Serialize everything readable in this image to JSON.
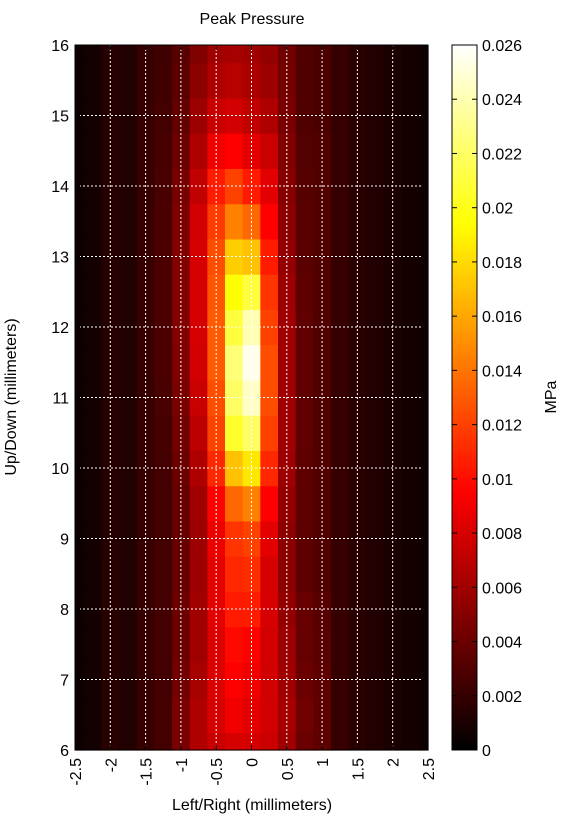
{
  "chart_data": {
    "type": "heatmap",
    "title": "Peak Pressure",
    "xlabel": "Left/Right (millimeters)",
    "ylabel": "Up/Down (millimeters)",
    "xlim": [
      -2.5,
      2.5
    ],
    "ylim": [
      6,
      16
    ],
    "x_ticks": [
      -2.5,
      -2,
      -1.5,
      -1,
      -0.5,
      0,
      0.5,
      1,
      1.5,
      2,
      2.5
    ],
    "x_tick_labels": [
      "-2.5",
      "-2",
      "-1.5",
      "-1",
      "-0.5",
      "0",
      "0.5",
      "1",
      "1.5",
      "2",
      "2.5"
    ],
    "y_ticks": [
      6,
      7,
      8,
      9,
      10,
      11,
      12,
      13,
      14,
      15,
      16
    ],
    "y_tick_labels": [
      "6",
      "7",
      "8",
      "9",
      "10",
      "11",
      "12",
      "13",
      "14",
      "15",
      "16"
    ],
    "grid": true,
    "colormap": "hot",
    "colorbar": {
      "label": "MPa",
      "range": [
        0,
        0.026
      ],
      "ticks": [
        0,
        0.002,
        0.004,
        0.006,
        0.008,
        0.01,
        0.012,
        0.014,
        0.016,
        0.018,
        0.02,
        0.022,
        0.024,
        0.026
      ],
      "tick_labels": [
        "0",
        "0.002",
        "0.004",
        "0.006",
        "0.008",
        "0.01",
        "0.012",
        "0.014",
        "0.016",
        "0.018",
        "0.02",
        "0.022",
        "0.024",
        "0.026"
      ]
    },
    "x": [
      -2.5,
      -2.25,
      -2,
      -1.75,
      -1.5,
      -1.25,
      -1,
      -0.75,
      -0.5,
      -0.25,
      0,
      0.25,
      0.5,
      0.75,
      1,
      1.25,
      1.5,
      1.75,
      2,
      2.25,
      2.5
    ],
    "y": [
      6,
      6.5,
      7,
      7.5,
      8,
      8.5,
      9,
      9.5,
      10,
      10.5,
      11,
      11.5,
      12,
      12.5,
      13,
      13.5,
      14,
      14.5,
      15,
      15.5,
      16
    ],
    "z": [
      [
        0.0005,
        0.0007,
        0.0015,
        0.0012,
        0.002,
        0.0025,
        0.0045,
        0.0065,
        0.0075,
        0.008,
        0.008,
        0.0075,
        0.006,
        0.004,
        0.0035,
        0.002,
        0.0015,
        0.0012,
        0.001,
        0.0008,
        0.0005
      ],
      [
        0.0005,
        0.0007,
        0.0015,
        0.0012,
        0.002,
        0.0025,
        0.0045,
        0.0065,
        0.008,
        0.009,
        0.0085,
        0.0078,
        0.0062,
        0.0042,
        0.0035,
        0.002,
        0.0015,
        0.0012,
        0.001,
        0.0008,
        0.0005
      ],
      [
        0.0005,
        0.0007,
        0.0015,
        0.0012,
        0.002,
        0.0025,
        0.0042,
        0.0062,
        0.0082,
        0.0095,
        0.009,
        0.0078,
        0.006,
        0.004,
        0.0035,
        0.002,
        0.0015,
        0.0012,
        0.001,
        0.0008,
        0.0005
      ],
      [
        0.0005,
        0.0007,
        0.0015,
        0.0012,
        0.002,
        0.0025,
        0.004,
        0.006,
        0.0082,
        0.0098,
        0.0095,
        0.0078,
        0.0058,
        0.0038,
        0.0033,
        0.002,
        0.0015,
        0.0012,
        0.001,
        0.0008,
        0.0005
      ],
      [
        0.0005,
        0.0007,
        0.0015,
        0.0012,
        0.002,
        0.0025,
        0.004,
        0.006,
        0.0085,
        0.0105,
        0.0105,
        0.008,
        0.0055,
        0.0038,
        0.0032,
        0.002,
        0.0015,
        0.0012,
        0.001,
        0.0008,
        0.0005
      ],
      [
        0.0005,
        0.0007,
        0.0015,
        0.0012,
        0.002,
        0.0025,
        0.0038,
        0.0058,
        0.0085,
        0.011,
        0.0112,
        0.008,
        0.0052,
        0.0035,
        0.003,
        0.002,
        0.0015,
        0.0012,
        0.001,
        0.0008,
        0.0005
      ],
      [
        0.0005,
        0.0007,
        0.0014,
        0.0012,
        0.002,
        0.0025,
        0.0038,
        0.0058,
        0.0088,
        0.0115,
        0.012,
        0.0085,
        0.0052,
        0.0035,
        0.003,
        0.002,
        0.0015,
        0.0012,
        0.001,
        0.0008,
        0.0005
      ],
      [
        0.0005,
        0.0007,
        0.0014,
        0.0012,
        0.002,
        0.0025,
        0.0038,
        0.006,
        0.0095,
        0.0135,
        0.0145,
        0.0095,
        0.0055,
        0.0035,
        0.003,
        0.002,
        0.0015,
        0.0012,
        0.001,
        0.0008,
        0.0005
      ],
      [
        0.0005,
        0.0007,
        0.0014,
        0.0012,
        0.002,
        0.0025,
        0.004,
        0.0065,
        0.011,
        0.017,
        0.0185,
        0.011,
        0.0058,
        0.0035,
        0.003,
        0.002,
        0.0015,
        0.0012,
        0.001,
        0.0008,
        0.0005
      ],
      [
        0.0005,
        0.0007,
        0.0014,
        0.0012,
        0.002,
        0.0026,
        0.0042,
        0.007,
        0.012,
        0.0205,
        0.022,
        0.012,
        0.006,
        0.0036,
        0.003,
        0.002,
        0.0015,
        0.0012,
        0.001,
        0.0008,
        0.0005
      ],
      [
        0.0005,
        0.0007,
        0.0014,
        0.0012,
        0.002,
        0.0027,
        0.0045,
        0.0075,
        0.0125,
        0.022,
        0.0245,
        0.0125,
        0.006,
        0.0036,
        0.003,
        0.002,
        0.0015,
        0.0012,
        0.001,
        0.0008,
        0.0005
      ],
      [
        0.0005,
        0.0007,
        0.0014,
        0.0012,
        0.002,
        0.0028,
        0.0047,
        0.0078,
        0.013,
        0.0225,
        0.0255,
        0.0125,
        0.006,
        0.0036,
        0.003,
        0.002,
        0.0015,
        0.0012,
        0.001,
        0.0008,
        0.0005
      ],
      [
        0.0005,
        0.0007,
        0.0014,
        0.0012,
        0.002,
        0.0028,
        0.0048,
        0.008,
        0.013,
        0.021,
        0.024,
        0.012,
        0.006,
        0.0036,
        0.003,
        0.002,
        0.0015,
        0.0012,
        0.001,
        0.0008,
        0.0005
      ],
      [
        0.0005,
        0.0007,
        0.0014,
        0.0012,
        0.002,
        0.0028,
        0.0048,
        0.008,
        0.0128,
        0.0195,
        0.021,
        0.0115,
        0.0058,
        0.0035,
        0.003,
        0.002,
        0.0015,
        0.0012,
        0.001,
        0.0008,
        0.0005
      ],
      [
        0.0005,
        0.0007,
        0.0014,
        0.0012,
        0.002,
        0.0028,
        0.0048,
        0.008,
        0.0125,
        0.0175,
        0.017,
        0.0105,
        0.0055,
        0.0034,
        0.003,
        0.002,
        0.0015,
        0.0012,
        0.001,
        0.0008,
        0.0005
      ],
      [
        0.0005,
        0.0007,
        0.0014,
        0.0012,
        0.002,
        0.0028,
        0.0046,
        0.0078,
        0.0118,
        0.0145,
        0.0135,
        0.0095,
        0.0052,
        0.0033,
        0.003,
        0.002,
        0.0015,
        0.0012,
        0.001,
        0.0008,
        0.0005
      ],
      [
        0.0005,
        0.0007,
        0.0014,
        0.0012,
        0.002,
        0.0027,
        0.0044,
        0.0072,
        0.0105,
        0.012,
        0.0105,
        0.0085,
        0.005,
        0.0032,
        0.003,
        0.002,
        0.0015,
        0.0012,
        0.001,
        0.0008,
        0.0005
      ],
      [
        0.0005,
        0.0007,
        0.0014,
        0.0012,
        0.002,
        0.0026,
        0.004,
        0.0065,
        0.009,
        0.0095,
        0.0085,
        0.0075,
        0.0048,
        0.0031,
        0.003,
        0.002,
        0.0015,
        0.0012,
        0.001,
        0.0008,
        0.0005
      ],
      [
        0.0005,
        0.0007,
        0.0014,
        0.0012,
        0.002,
        0.0025,
        0.0037,
        0.0058,
        0.0075,
        0.0078,
        0.0072,
        0.0065,
        0.0045,
        0.003,
        0.0028,
        0.002,
        0.0015,
        0.0012,
        0.001,
        0.0008,
        0.0005
      ],
      [
        0.0005,
        0.0007,
        0.0014,
        0.0012,
        0.002,
        0.0024,
        0.0034,
        0.0052,
        0.0065,
        0.0068,
        0.0064,
        0.0058,
        0.0043,
        0.003,
        0.0028,
        0.002,
        0.0015,
        0.0012,
        0.001,
        0.0008,
        0.0005
      ],
      [
        0.0005,
        0.0007,
        0.0014,
        0.0012,
        0.002,
        0.0023,
        0.0032,
        0.0048,
        0.006,
        0.0062,
        0.006,
        0.0055,
        0.0042,
        0.003,
        0.0028,
        0.002,
        0.0015,
        0.0012,
        0.001,
        0.0008,
        0.0005
      ]
    ]
  }
}
